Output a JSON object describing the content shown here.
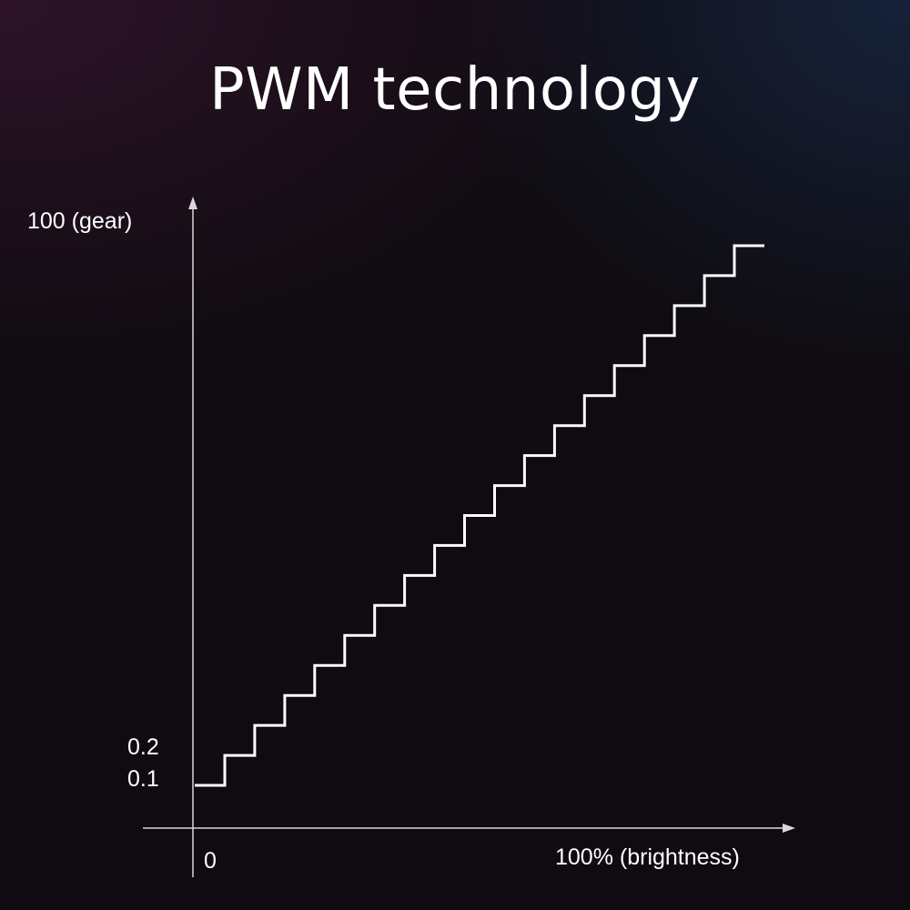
{
  "chart_data": {
    "type": "line",
    "title": "PWM technology",
    "ylabel": "100 (gear)",
    "xlabel": "100% (brightness)",
    "x_tick_labels": [
      "0"
    ],
    "y_tick_labels": [
      "0.2",
      "0.1"
    ],
    "step_count": 19,
    "grid": false,
    "legend": "none"
  }
}
